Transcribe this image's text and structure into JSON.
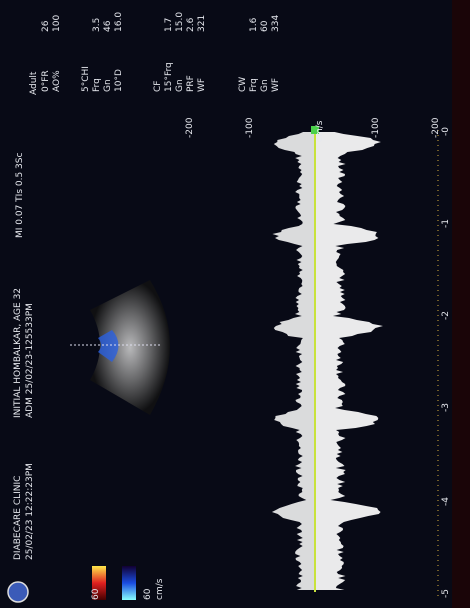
{
  "header": {
    "clinic": "DIABECARE CLINIC",
    "datetime": "25/02/23 12:22:23PM",
    "patient": "INITIAL HOMBALKAR, AGE 32",
    "adm": "ADM 25/02/23-125533PM",
    "indices": "MI 0.07  TIs 0.5  3Sc",
    "preset": "Adult"
  },
  "params": [
    {
      "label": "0°FR",
      "value": "26"
    },
    {
      "label": "AO%",
      "value": "100"
    },
    {
      "label": "5°CHI",
      "value": null
    },
    {
      "label": "Frq",
      "value": "3.5"
    },
    {
      "label": "Gn",
      "value": "46"
    },
    {
      "label": "10°D",
      "value": "16.0"
    },
    {
      "label": "CF",
      "value": null
    },
    {
      "label": "15°Frq",
      "value": "1.7"
    },
    {
      "label": "Gn",
      "value": "15.0"
    },
    {
      "label": "PRF",
      "value": "2.6"
    },
    {
      "label": "WF",
      "value": "321"
    },
    {
      "label": "CW",
      "value": null
    },
    {
      "label": "Frq",
      "value": "1.6"
    },
    {
      "label": "Gn",
      "value": "60"
    },
    {
      "label": "WF",
      "value": "334"
    }
  ],
  "color_bar": {
    "unit": "cm/s",
    "top": "60",
    "bottom": "60"
  },
  "doppler": {
    "unit": "cm/s",
    "scale": [
      "-200",
      "-100",
      "-100",
      "-200"
    ],
    "time_axis": [
      "-5",
      "-4",
      "-3",
      "-2",
      "-1",
      "-0"
    ]
  }
}
